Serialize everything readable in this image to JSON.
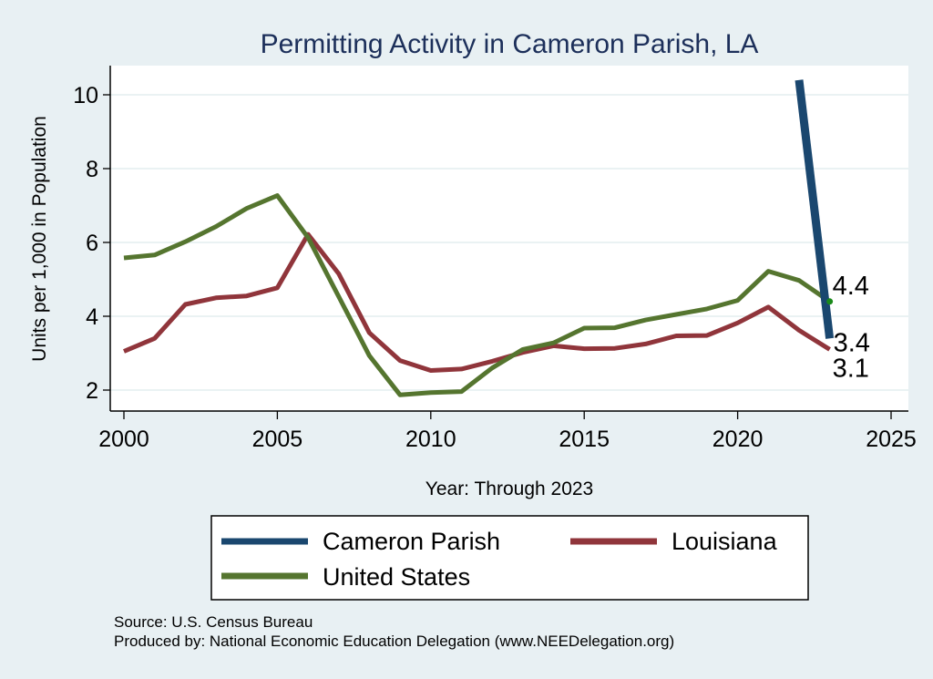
{
  "chart_data": {
    "type": "line",
    "title": "Permitting Activity in Cameron Parish, LA",
    "xlabel": "Year: Through 2023",
    "ylabel": "Units per 1,000 in Population",
    "xlim": [
      2000,
      2025
    ],
    "ylim": [
      1.4,
      10.8
    ],
    "xticks": [
      2000,
      2005,
      2010,
      2015,
      2020,
      2025
    ],
    "yticks": [
      2,
      4,
      6,
      8,
      10
    ],
    "grid": true,
    "legend_position": "bottom",
    "series": [
      {
        "name": "Cameron Parish",
        "color": "#1a476f",
        "x": [
          2022,
          2023
        ],
        "values": [
          10.4,
          3.4
        ],
        "end_label": "3.4"
      },
      {
        "name": "Louisiana",
        "color": "#90353b",
        "x": [
          2000,
          2001,
          2002,
          2003,
          2004,
          2005,
          2006,
          2007,
          2008,
          2009,
          2010,
          2011,
          2012,
          2013,
          2014,
          2015,
          2016,
          2017,
          2018,
          2019,
          2020,
          2021,
          2022,
          2023
        ],
        "values": [
          3.05,
          3.4,
          4.32,
          4.5,
          4.55,
          4.77,
          6.22,
          5.15,
          3.55,
          2.8,
          2.53,
          2.57,
          2.78,
          3.02,
          3.2,
          3.12,
          3.13,
          3.25,
          3.47,
          3.48,
          3.82,
          4.25,
          3.62,
          3.1
        ],
        "end_label": "3.1"
      },
      {
        "name": "United States",
        "color": "#55752f",
        "x": [
          2000,
          2001,
          2002,
          2003,
          2004,
          2005,
          2006,
          2007,
          2008,
          2009,
          2010,
          2011,
          2012,
          2013,
          2014,
          2015,
          2016,
          2017,
          2018,
          2019,
          2020,
          2021,
          2022,
          2023
        ],
        "values": [
          5.58,
          5.66,
          6.02,
          6.43,
          6.92,
          7.27,
          6.13,
          4.53,
          2.93,
          1.87,
          1.93,
          1.96,
          2.6,
          3.1,
          3.28,
          3.68,
          3.69,
          3.9,
          4.05,
          4.2,
          4.43,
          5.22,
          4.97,
          4.4
        ],
        "end_label": "4.4"
      }
    ],
    "notes": [
      "Source: U.S. Census Bureau",
      "Produced by: National Economic Education Delegation (www.NEEDelegation.org)"
    ]
  }
}
